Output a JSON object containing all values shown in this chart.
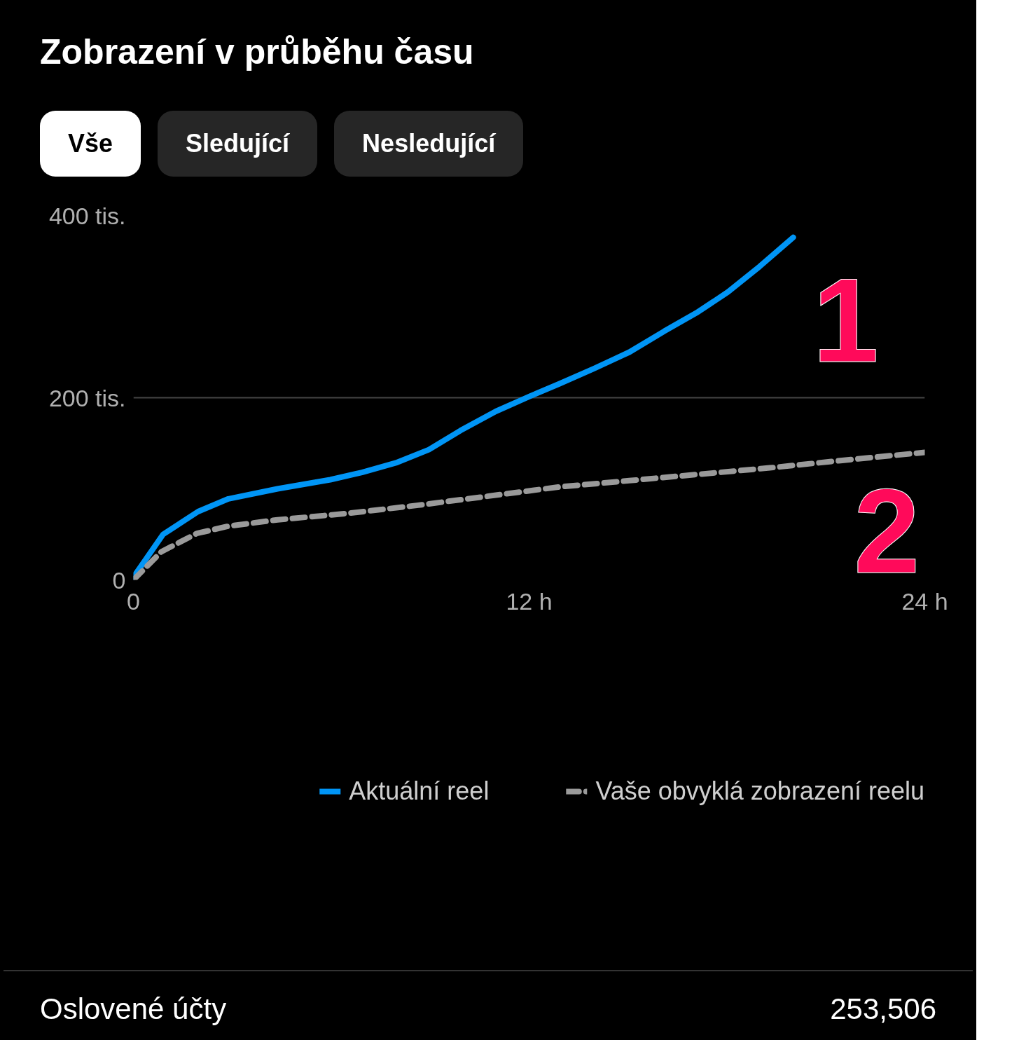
{
  "chart_data": {
    "type": "line",
    "title": "Zobrazení v průběhu času",
    "xlim": [
      0,
      24
    ],
    "xticks": [
      {
        "value": 0,
        "label": "0"
      },
      {
        "value": 12,
        "label": "12 h"
      },
      {
        "value": 24,
        "label": "24 h"
      }
    ],
    "ylim": [
      0,
      400
    ],
    "yticks": [
      {
        "value": 0,
        "label": "0"
      },
      {
        "value": 200,
        "label": "200 tis."
      },
      {
        "value": 400,
        "label": "400 tis."
      }
    ],
    "grid": "y",
    "legend": "bottom",
    "marker": "none",
    "series": [
      {
        "name": "Aktuální reel",
        "color": "#0095f6",
        "line_style": "solid",
        "x": [
          0,
          0.9,
          1.96,
          2.88,
          4.37,
          5.97,
          6.93,
          8.0,
          8.96,
          9.92,
          10.99,
          12.05,
          12.9,
          13.97,
          15.04,
          16.1,
          17.07,
          18.03,
          18.99,
          20.01
        ],
        "values": [
          3,
          50,
          75,
          89,
          100,
          110,
          118,
          129,
          143,
          164,
          185,
          202,
          215,
          232,
          250,
          273,
          293,
          316,
          344,
          376
        ]
      },
      {
        "name": "Vaše obvyklá zobrazení reelu",
        "color": "#9a9a9a",
        "line_style": "dashed",
        "x": [
          0,
          0.85,
          1.92,
          2.88,
          4.37,
          6.5,
          8.64,
          10.77,
          12.9,
          15.04,
          17.17,
          19.3,
          21.44,
          24
        ],
        "values": [
          0,
          31,
          51,
          59,
          66,
          73,
          82,
          92,
          102,
          109,
          116,
          123,
          131,
          140
        ]
      }
    ],
    "annotations": [
      "Vše",
      "Sledující",
      "Nesledující",
      "1",
      "2",
      "Oslovené účty",
      "253,506"
    ]
  }
}
